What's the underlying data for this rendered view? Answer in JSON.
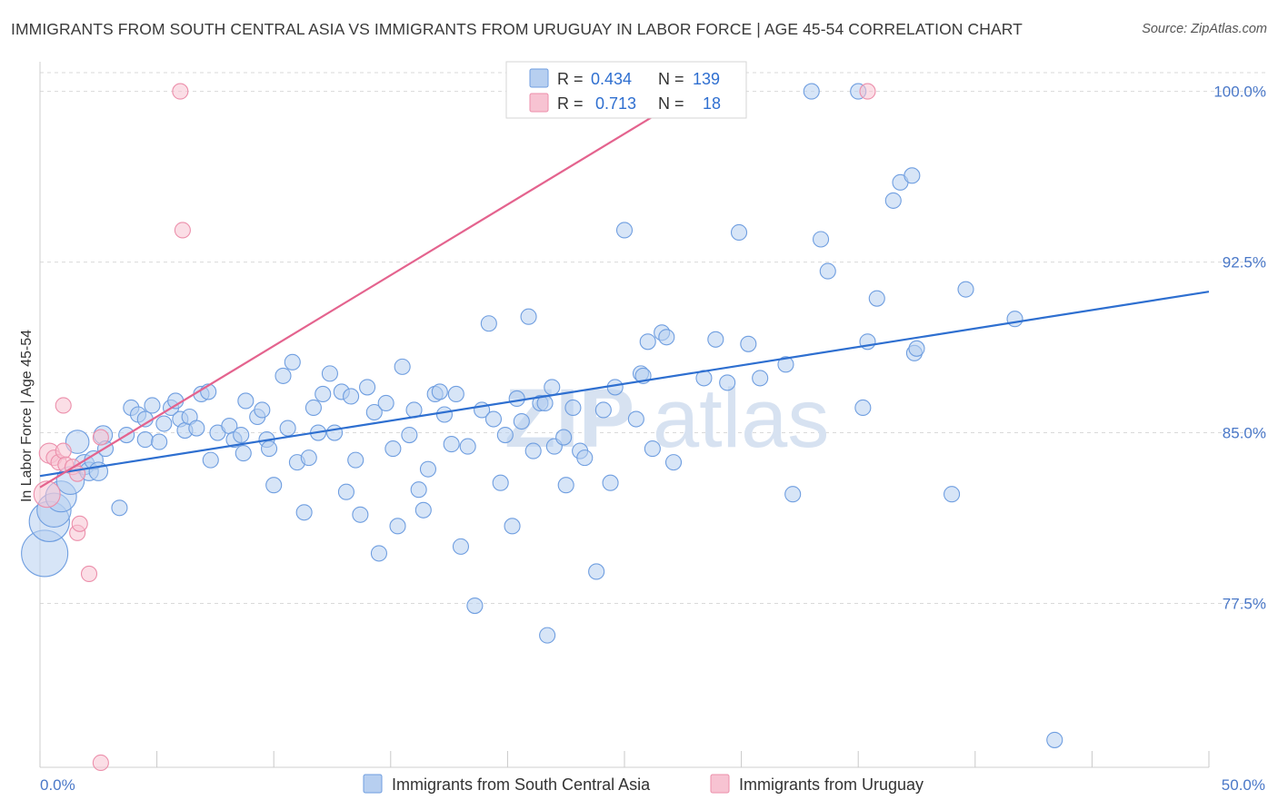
{
  "title": "IMMIGRANTS FROM SOUTH CENTRAL ASIA VS IMMIGRANTS FROM URUGUAY IN LABOR FORCE | AGE 45-54 CORRELATION CHART",
  "source": "Source: ZipAtlas.com",
  "watermark": {
    "zip": "ZIP",
    "atlas": "atlas"
  },
  "colors": {
    "blue_fill": "#b7cff0",
    "blue_stroke": "#6f9ee0",
    "blue_line": "#2e6fd0",
    "pink_fill": "#f7c3d2",
    "pink_stroke": "#ec8fab",
    "pink_line": "#e4638e",
    "grid": "#d9d9d9",
    "tick_text": "#4a78c8"
  },
  "legend": {
    "rows": [
      {
        "r_label": "R =",
        "r_value": "0.434",
        "n_label": "N =",
        "n_value": "139"
      },
      {
        "r_label": "R =",
        "r_value": "0.713",
        "n_label": "N =",
        "n_value": "18"
      }
    ]
  },
  "chart_data": {
    "type": "scatter",
    "title": "IMMIGRANTS FROM SOUTH CENTRAL ASIA VS IMMIGRANTS FROM URUGUAY IN LABOR FORCE | AGE 45-54 CORRELATION CHART",
    "xlabel": "",
    "ylabel": "In Labor Force | Age 45-54",
    "xlim": [
      0,
      50
    ],
    "ylim": [
      70.3,
      101.3
    ],
    "x_tick_labels": [
      "0.0%",
      "50.0%"
    ],
    "y_ticks": [
      77.5,
      85.0,
      92.5,
      100.0
    ],
    "y_tick_labels": [
      "77.5%",
      "85.0%",
      "92.5%",
      "100.0%"
    ],
    "grid": true,
    "legend_placement": "top-center",
    "series": [
      {
        "name": "Immigrants from South Central Asia",
        "r": 0.434,
        "n": 139,
        "trend": {
          "x": [
            0,
            50
          ],
          "y": [
            83.1,
            91.2
          ]
        },
        "points": [
          [
            0.2,
            79.7,
            3
          ],
          [
            0.4,
            81.1,
            2.6
          ],
          [
            0.6,
            81.6,
            2.2
          ],
          [
            0.9,
            82.2,
            2
          ],
          [
            1.3,
            82.9,
            1.8
          ],
          [
            1.6,
            84.6,
            1.5
          ],
          [
            1.9,
            83.6,
            1.3
          ],
          [
            2.1,
            83.3,
            1.2
          ],
          [
            2.3,
            83.8,
            1.2
          ],
          [
            2.5,
            83.3,
            1.2
          ],
          [
            2.7,
            84.9,
            1.2
          ],
          [
            2.8,
            84.3,
            1
          ],
          [
            3.4,
            81.7,
            1
          ],
          [
            3.7,
            84.9,
            1
          ],
          [
            3.9,
            86.1,
            1
          ],
          [
            4.2,
            85.8,
            1
          ],
          [
            4.5,
            85.6,
            1
          ],
          [
            4.5,
            84.7,
            1
          ],
          [
            4.8,
            86.2,
            1
          ],
          [
            5.1,
            84.6,
            1
          ],
          [
            5.3,
            85.4,
            1
          ],
          [
            5.6,
            86.1,
            1
          ],
          [
            5.8,
            86.4,
            1
          ],
          [
            6.0,
            85.6,
            1
          ],
          [
            6.2,
            85.1,
            1
          ],
          [
            6.4,
            85.7,
            1
          ],
          [
            6.7,
            85.2,
            1
          ],
          [
            6.9,
            86.7,
            1
          ],
          [
            7.2,
            86.8,
            1
          ],
          [
            7.3,
            83.8,
            1
          ],
          [
            7.6,
            85.0,
            1
          ],
          [
            8.1,
            85.3,
            1
          ],
          [
            8.3,
            84.7,
            1
          ],
          [
            8.6,
            84.9,
            1
          ],
          [
            8.7,
            84.1,
            1
          ],
          [
            8.8,
            86.4,
            1
          ],
          [
            9.3,
            85.7,
            1
          ],
          [
            9.5,
            86.0,
            1
          ],
          [
            9.7,
            84.7,
            1
          ],
          [
            9.8,
            84.3,
            1
          ],
          [
            10.0,
            82.7,
            1
          ],
          [
            10.4,
            87.5,
            1
          ],
          [
            10.6,
            85.2,
            1
          ],
          [
            10.8,
            88.1,
            1
          ],
          [
            11.0,
            83.7,
            1
          ],
          [
            11.3,
            81.5,
            1
          ],
          [
            11.5,
            83.9,
            1
          ],
          [
            11.7,
            86.1,
            1
          ],
          [
            11.9,
            85.0,
            1
          ],
          [
            12.1,
            86.7,
            1
          ],
          [
            12.4,
            87.6,
            1
          ],
          [
            12.6,
            85.0,
            1
          ],
          [
            12.9,
            86.8,
            1
          ],
          [
            13.1,
            82.4,
            1
          ],
          [
            13.3,
            86.6,
            1
          ],
          [
            13.5,
            83.8,
            1
          ],
          [
            13.7,
            81.4,
            1
          ],
          [
            14.0,
            87.0,
            1
          ],
          [
            14.3,
            85.9,
            1
          ],
          [
            14.5,
            79.7,
            1
          ],
          [
            14.8,
            86.3,
            1
          ],
          [
            15.1,
            84.3,
            1
          ],
          [
            15.3,
            80.9,
            1
          ],
          [
            15.5,
            87.9,
            1
          ],
          [
            15.8,
            84.9,
            1
          ],
          [
            16.0,
            86.0,
            1
          ],
          [
            16.2,
            82.5,
            1
          ],
          [
            16.4,
            81.6,
            1
          ],
          [
            16.6,
            83.4,
            1
          ],
          [
            16.9,
            86.7,
            1
          ],
          [
            17.1,
            86.8,
            1
          ],
          [
            17.3,
            85.8,
            1
          ],
          [
            17.6,
            84.5,
            1
          ],
          [
            17.8,
            86.7,
            1
          ],
          [
            18.0,
            80.0,
            1
          ],
          [
            18.3,
            84.4,
            1
          ],
          [
            18.6,
            77.4,
            1
          ],
          [
            18.9,
            86.0,
            1
          ],
          [
            19.2,
            89.8,
            1
          ],
          [
            19.4,
            85.6,
            1
          ],
          [
            19.7,
            82.8,
            1
          ],
          [
            19.9,
            84.9,
            1
          ],
          [
            20.2,
            80.9,
            1
          ],
          [
            20.4,
            86.5,
            1
          ],
          [
            20.6,
            85.5,
            1
          ],
          [
            20.9,
            90.1,
            1
          ],
          [
            21.1,
            84.2,
            1
          ],
          [
            21.4,
            86.3,
            1
          ],
          [
            21.6,
            86.3,
            1
          ],
          [
            21.7,
            76.1,
            1
          ],
          [
            21.9,
            87.0,
            1
          ],
          [
            22.0,
            84.4,
            1
          ],
          [
            22.4,
            84.8,
            1
          ],
          [
            22.5,
            82.7,
            1
          ],
          [
            22.8,
            86.1,
            1
          ],
          [
            23.1,
            84.2,
            1
          ],
          [
            23.3,
            83.9,
            1
          ],
          [
            23.8,
            78.9,
            1
          ],
          [
            24.1,
            86.0,
            1
          ],
          [
            24.4,
            82.8,
            1
          ],
          [
            24.6,
            87.0,
            1
          ],
          [
            25.0,
            93.9,
            1
          ],
          [
            25.5,
            85.6,
            1
          ],
          [
            25.7,
            87.6,
            1
          ],
          [
            25.8,
            87.5,
            1
          ],
          [
            26.0,
            89.0,
            1
          ],
          [
            26.2,
            84.3,
            1
          ],
          [
            26.6,
            89.4,
            1
          ],
          [
            26.8,
            89.2,
            1
          ],
          [
            27.1,
            83.7,
            1
          ],
          [
            28.4,
            87.4,
            1
          ],
          [
            28.9,
            89.1,
            1
          ],
          [
            29.4,
            87.2,
            1
          ],
          [
            29.6,
            100.0,
            1
          ],
          [
            29.9,
            93.8,
            1
          ],
          [
            30.3,
            88.9,
            1
          ],
          [
            30.8,
            87.4,
            1
          ],
          [
            31.9,
            88.0,
            1
          ],
          [
            32.2,
            82.3,
            1
          ],
          [
            33.0,
            100.0,
            1
          ],
          [
            33.4,
            93.5,
            1
          ],
          [
            33.7,
            92.1,
            1
          ],
          [
            35.0,
            100.0,
            1
          ],
          [
            35.2,
            86.1,
            1
          ],
          [
            35.4,
            89.0,
            1
          ],
          [
            35.8,
            90.9,
            1
          ],
          [
            36.5,
            95.2,
            1
          ],
          [
            36.8,
            96.0,
            1
          ],
          [
            37.3,
            96.3,
            1
          ],
          [
            37.4,
            88.5,
            1
          ],
          [
            37.5,
            88.7,
            1
          ],
          [
            39.0,
            82.3,
            1
          ],
          [
            39.6,
            91.3,
            1
          ],
          [
            41.7,
            90.0,
            1
          ],
          [
            43.4,
            71.5,
            1
          ]
        ]
      },
      {
        "name": "Immigrants from Uruguay",
        "r": 0.713,
        "n": 18,
        "trend": {
          "x": [
            0,
            28.0
          ],
          "y": [
            82.6,
            100.0
          ]
        },
        "points": [
          [
            0.3,
            82.3,
            1.7
          ],
          [
            0.4,
            84.1,
            1.3
          ],
          [
            0.6,
            83.9,
            1
          ],
          [
            0.8,
            83.7,
            1
          ],
          [
            1.0,
            84.2,
            1
          ],
          [
            1.0,
            86.2,
            1
          ],
          [
            1.1,
            83.6,
            1
          ],
          [
            1.4,
            83.5,
            1
          ],
          [
            1.6,
            83.2,
            1
          ],
          [
            1.6,
            80.6,
            1
          ],
          [
            1.7,
            81.0,
            1
          ],
          [
            2.1,
            78.8,
            1
          ],
          [
            2.6,
            84.8,
            1
          ],
          [
            2.6,
            70.5,
            1
          ],
          [
            6.0,
            100.0,
            1
          ],
          [
            6.1,
            93.9,
            1
          ],
          [
            23.9,
            100.0,
            1
          ],
          [
            35.4,
            100.0,
            1
          ]
        ]
      }
    ]
  }
}
